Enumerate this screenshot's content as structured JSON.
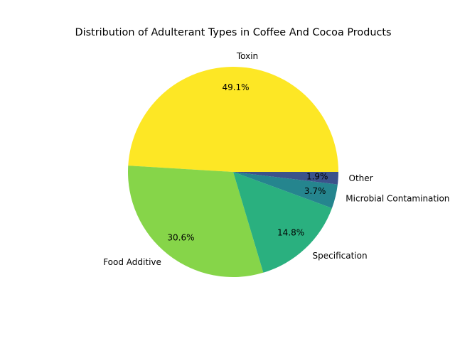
{
  "chart_data": {
    "type": "pie",
    "title": "Distribution of Adulterant Types in Coffee And Cocoa Products",
    "categories": [
      "Toxin",
      "Food Additive",
      "Specification",
      "Microbial Contamination",
      "Other"
    ],
    "values": [
      49.1,
      30.6,
      14.8,
      3.7,
      1.9
    ],
    "value_labels": [
      "49.1%",
      "30.6%",
      "14.8%",
      "3.7%",
      "1.9%"
    ],
    "colors": [
      "#fde725",
      "#86d549",
      "#2ab07f",
      "#25858e",
      "#3b528b"
    ],
    "start_angle_deg": 0,
    "direction": "counterclockwise",
    "legend": "none"
  }
}
